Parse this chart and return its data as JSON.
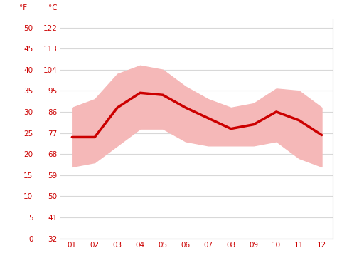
{
  "months": [
    1,
    2,
    3,
    4,
    5,
    6,
    7,
    8,
    9,
    10,
    11,
    12
  ],
  "month_labels": [
    "01",
    "02",
    "03",
    "04",
    "05",
    "06",
    "07",
    "08",
    "09",
    "10",
    "11",
    "12"
  ],
  "mean_temp_c": [
    24,
    24,
    31,
    34.5,
    34,
    31,
    28.5,
    26,
    27,
    30,
    28,
    24.5
  ],
  "max_temp_c": [
    31,
    33,
    39,
    41,
    40,
    36,
    33,
    31,
    32,
    35.5,
    35,
    31
  ],
  "min_temp_c": [
    17,
    18,
    22,
    26,
    26,
    23,
    22,
    22,
    22,
    23,
    19,
    17
  ],
  "band_color": "#f5b8b8",
  "line_color": "#cc0000",
  "line_width": 2.5,
  "background_color": "#ffffff",
  "grid_color": "#d8d8d8",
  "axis_color": "#cc0000",
  "label_f": "°F",
  "label_c": "°C",
  "yticks_c": [
    0,
    5,
    10,
    15,
    20,
    25,
    30,
    35,
    40,
    45,
    50
  ],
  "yticks_f": [
    32,
    41,
    50,
    59,
    68,
    77,
    86,
    95,
    104,
    113,
    122
  ],
  "ylim_c": [
    0,
    52
  ],
  "xlim": [
    0.5,
    12.5
  ],
  "tick_fontsize": 7.5,
  "figsize": [
    4.74,
    3.55
  ],
  "dpi": 100
}
